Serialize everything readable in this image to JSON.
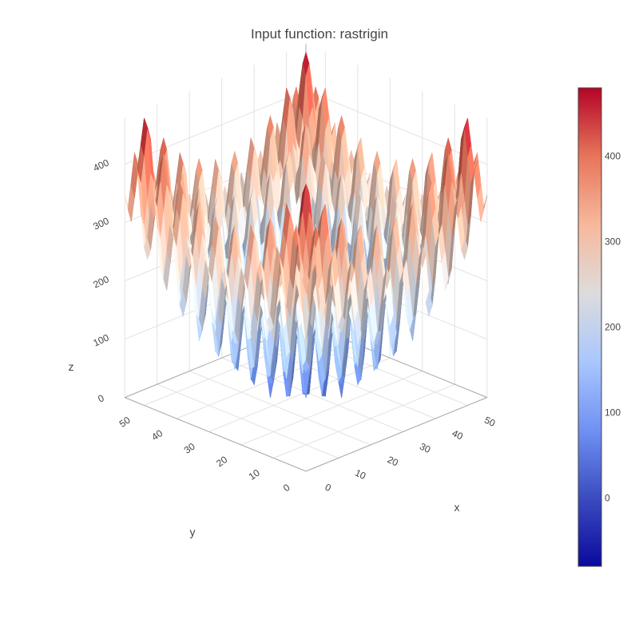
{
  "chart_data": {
    "type": "surface",
    "title": "Input function: rastrigin",
    "function": "rastrigin",
    "grid_size": 57,
    "x_range": [
      0,
      56
    ],
    "y_range": [
      0,
      56
    ],
    "z_range": [
      0,
      480
    ],
    "xlabel": "x",
    "ylabel": "y",
    "zlabel": "z",
    "x_ticks": [
      "0",
      "10",
      "20",
      "30",
      "40",
      "50"
    ],
    "y_ticks": [
      "0",
      "10",
      "20",
      "30",
      "40",
      "50"
    ],
    "z_ticks": [
      "0",
      "100",
      "200",
      "300",
      "400"
    ],
    "colorbar": {
      "min": -80,
      "max": 480,
      "ticks": [
        "0",
        "100",
        "200",
        "300",
        "400"
      ],
      "tick_values": [
        0,
        100,
        200,
        300,
        400
      ],
      "colorscale": [
        "#0a0a9c",
        "#3b4cc0",
        "#6f92f3",
        "#aac7fd",
        "#dddcdc",
        "#f7b89c",
        "#e7755b",
        "#b40426"
      ]
    },
    "grid": true,
    "legend": "none"
  }
}
